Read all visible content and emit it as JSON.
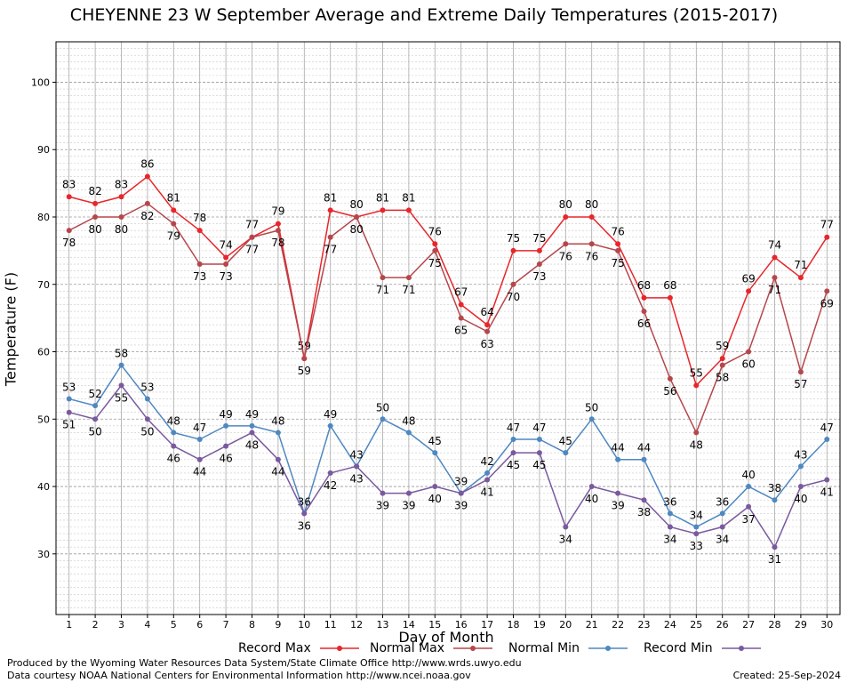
{
  "chart_data": {
    "type": "line",
    "title": "CHEYENNE 23 W September Average and Extreme Daily Temperatures (2015-2017)",
    "xlabel": "Day of Month",
    "ylabel": "Temperature (F)",
    "x": [
      1,
      2,
      3,
      4,
      5,
      6,
      7,
      8,
      9,
      10,
      11,
      12,
      13,
      14,
      15,
      16,
      17,
      18,
      19,
      20,
      21,
      22,
      23,
      24,
      25,
      26,
      27,
      28,
      29,
      30
    ],
    "ylim": [
      21,
      106
    ],
    "yticks": [
      30,
      40,
      50,
      60,
      70,
      80,
      90,
      100
    ],
    "grid": true,
    "legend_position": "bottom",
    "series": [
      {
        "name": "Record Max",
        "color": "#e8262b",
        "values": [
          83,
          82,
          83,
          86,
          81,
          78,
          74,
          77,
          79,
          59,
          81,
          80,
          81,
          81,
          76,
          67,
          64,
          75,
          75,
          80,
          80,
          76,
          68,
          68,
          55,
          59,
          69,
          74,
          71,
          77
        ]
      },
      {
        "name": "Normal Max",
        "color": "#b5474c",
        "values": [
          78,
          80,
          80,
          82,
          79,
          73,
          73,
          77,
          78,
          59,
          77,
          80,
          71,
          71,
          75,
          65,
          63,
          70,
          73,
          76,
          76,
          75,
          66,
          56,
          48,
          58,
          60,
          71,
          57,
          69
        ]
      },
      {
        "name": "Normal Min",
        "color": "#4f88c0",
        "values": [
          53,
          52,
          58,
          53,
          48,
          47,
          49,
          49,
          48,
          36,
          49,
          43,
          50,
          48,
          45,
          39,
          42,
          47,
          47,
          45,
          50,
          44,
          44,
          36,
          34,
          36,
          40,
          38,
          43,
          47
        ]
      },
      {
        "name": "Record Min",
        "color": "#7a5a9e",
        "values": [
          51,
          50,
          55,
          50,
          46,
          44,
          46,
          48,
          44,
          36,
          42,
          43,
          39,
          39,
          40,
          39,
          41,
          45,
          45,
          34,
          40,
          39,
          38,
          34,
          33,
          34,
          37,
          31,
          40,
          41
        ]
      }
    ]
  },
  "footer": {
    "credit_line1": "Produced by the Wyoming Water Resources Data System/State Climate Office http://www.wrds.uwyo.edu",
    "credit_line2": "Data courtesy NOAA National Centers for Environmental Information http://www.ncei.noaa.gov",
    "created": "Created:  25-Sep-2024"
  }
}
